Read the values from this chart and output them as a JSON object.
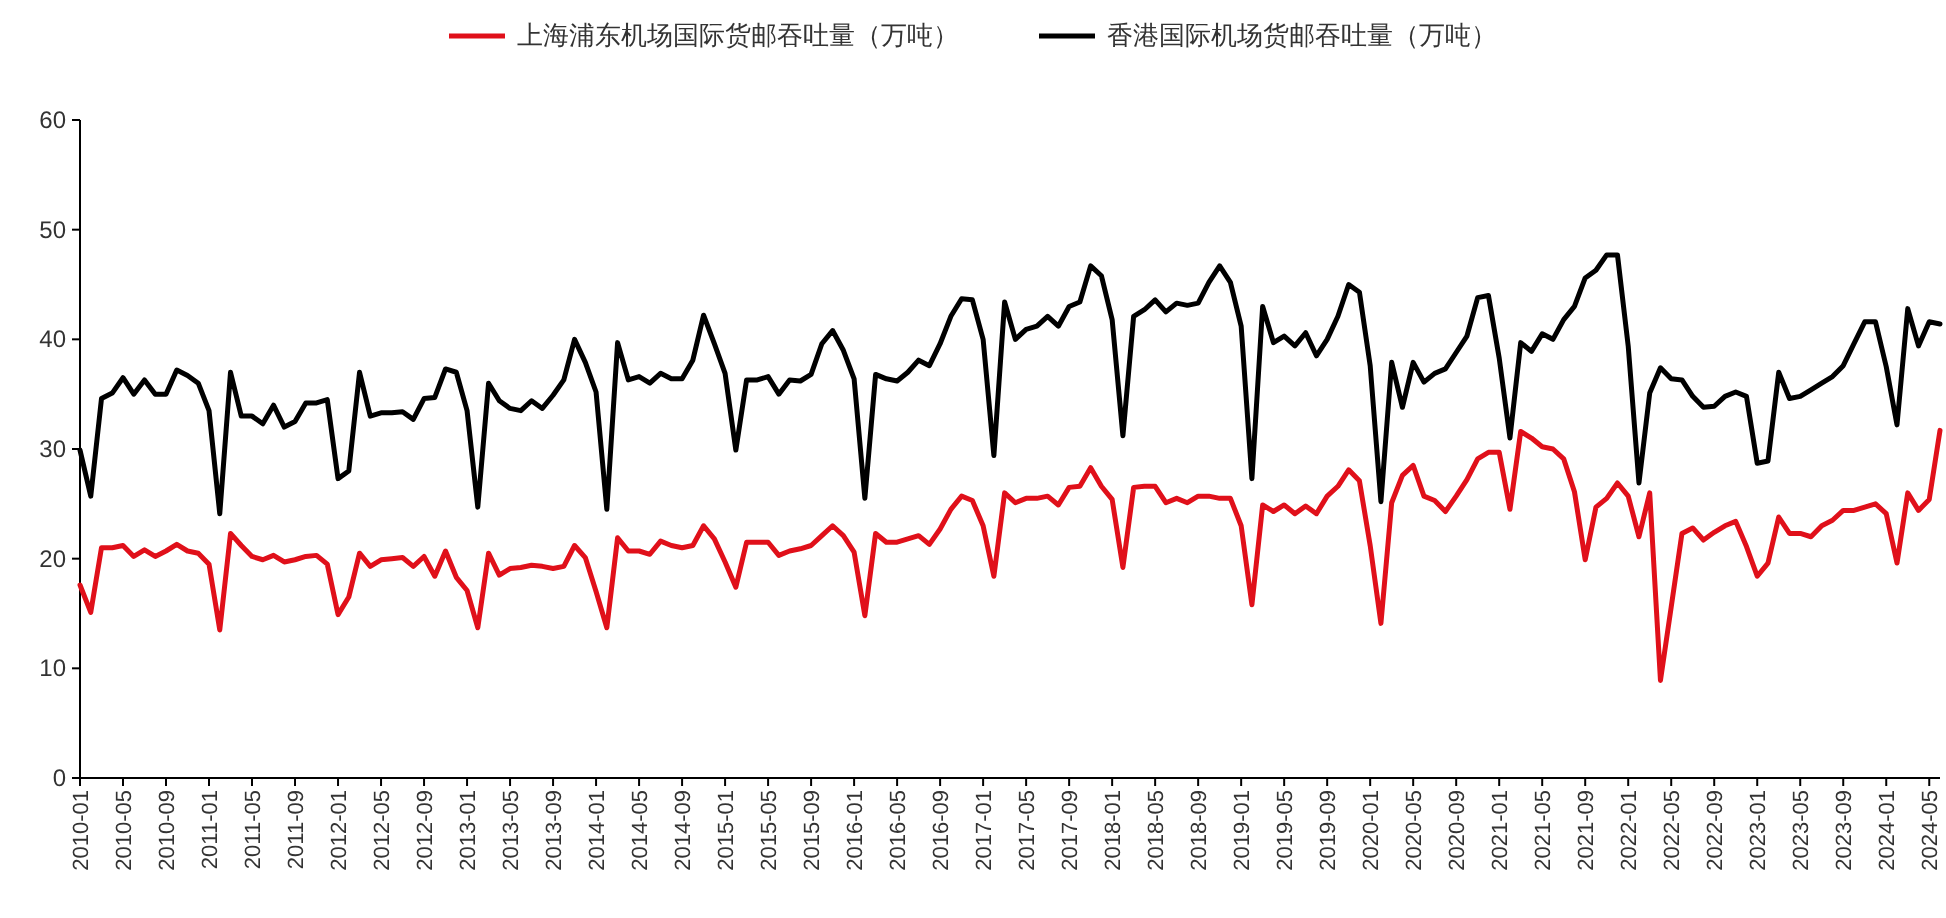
{
  "chart_data": {
    "type": "line",
    "legend": "top",
    "ylim": [
      0,
      60
    ],
    "yticks": [
      0,
      10,
      20,
      30,
      40,
      50,
      60
    ],
    "categories": [
      "2010-01",
      null,
      null,
      null,
      "2010-05",
      null,
      null,
      null,
      "2010-09",
      null,
      null,
      null,
      "2011-01",
      null,
      null,
      null,
      "2011-05",
      null,
      null,
      null,
      "2011-09",
      null,
      null,
      null,
      "2012-01",
      null,
      null,
      null,
      "2012-05",
      null,
      null,
      null,
      "2012-09",
      null,
      null,
      null,
      "2013-01",
      null,
      null,
      null,
      "2013-05",
      null,
      null,
      null,
      "2013-09",
      null,
      null,
      null,
      "2014-01",
      null,
      null,
      null,
      "2014-05",
      null,
      null,
      null,
      "2014-09",
      null,
      null,
      null,
      "2015-01",
      null,
      null,
      null,
      "2015-05",
      null,
      null,
      null,
      "2015-09",
      null,
      null,
      null,
      "2016-01",
      null,
      null,
      null,
      "2016-05",
      null,
      null,
      null,
      "2016-09",
      null,
      null,
      null,
      "2017-01",
      null,
      null,
      null,
      "2017-05",
      null,
      null,
      null,
      "2017-09",
      null,
      null,
      null,
      "2018-01",
      null,
      null,
      null,
      "2018-05",
      null,
      null,
      null,
      "2018-09",
      null,
      null,
      null,
      "2019-01",
      null,
      null,
      null,
      "2019-05",
      null,
      null,
      null,
      "2019-09",
      null,
      null,
      null,
      "2020-01",
      null,
      null,
      null,
      "2020-05",
      null,
      null,
      null,
      "2020-09",
      null,
      null,
      null,
      "2021-01",
      null,
      null,
      null,
      "2021-05",
      null,
      null,
      null,
      "2021-09",
      null,
      null,
      null,
      "2022-01",
      null,
      null,
      null,
      "2022-05",
      null,
      null,
      null,
      "2022-09",
      null,
      null,
      null,
      "2023-01",
      null,
      null,
      null,
      "2023-05",
      null,
      null,
      null,
      "2023-09",
      null,
      null,
      null,
      "2024-01",
      null,
      null,
      null,
      "2024-05",
      null
    ],
    "series": [
      {
        "name": "上海浦东机场国际货邮吞吐量（万吨）",
        "color": "#e0101a",
        "values": [
          17.6,
          15.1,
          21,
          21,
          21.2,
          20.2,
          20.8,
          20.2,
          20.7,
          21.3,
          20.7,
          20.5,
          19.5,
          13.5,
          22.3,
          21.2,
          20.2,
          19.9,
          20.3,
          19.7,
          19.9,
          20.2,
          20.3,
          19.5,
          14.9,
          16.5,
          20.5,
          19.3,
          19.9,
          20,
          20.1,
          19.3,
          20.2,
          18.4,
          20.7,
          18.3,
          17.1,
          13.7,
          20.5,
          18.5,
          19.1,
          19.2,
          19.4,
          19.3,
          19.1,
          19.3,
          21.2,
          20.1,
          17,
          13.7,
          21.9,
          20.7,
          20.7,
          20.4,
          21.6,
          21.2,
          21,
          21.2,
          23,
          21.8,
          19.7,
          17.4,
          21.5,
          21.5,
          21.5,
          20.3,
          20.7,
          20.9,
          21.2,
          22.1,
          23,
          22.1,
          20.6,
          14.8,
          22.3,
          21.5,
          21.5,
          21.8,
          22.1,
          21.3,
          22.7,
          24.5,
          25.7,
          25.3,
          23,
          18.4,
          26,
          25.1,
          25.5,
          25.5,
          25.7,
          24.9,
          26.5,
          26.6,
          28.3,
          26.6,
          25.4,
          19.2,
          26.5,
          26.6,
          26.6,
          25.1,
          25.5,
          25.1,
          25.7,
          25.7,
          25.5,
          25.5,
          23,
          15.8,
          24.9,
          24.3,
          24.9,
          24.1,
          24.8,
          24.1,
          25.7,
          26.6,
          28.1,
          27.1,
          21.2,
          14.1,
          25.1,
          27.6,
          28.5,
          25.7,
          25.3,
          24.3,
          25.7,
          27.2,
          29.1,
          29.7,
          29.7,
          24.5,
          31.6,
          31,
          30.2,
          30,
          29.1,
          26.1,
          19.9,
          24.7,
          25.5,
          26.9,
          25.7,
          22,
          26,
          8.9,
          15.6,
          22.3,
          22.8,
          21.7,
          22.4,
          23,
          23.4,
          21.1,
          18.4,
          19.6,
          23.8,
          22.3,
          22.3,
          22,
          23,
          23.5,
          24.4,
          24.4,
          24.7,
          25,
          24.1,
          19.6,
          26,
          24.4,
          25.4,
          31.7
        ]
      },
      {
        "name": "香港国际机场货邮吞吐量（万吨）",
        "color": "#000000",
        "values": [
          29.9,
          25.7,
          34.6,
          35.1,
          36.5,
          35,
          36.3,
          35,
          35,
          37.2,
          36.7,
          36,
          33.5,
          24.1,
          37,
          33,
          33,
          32.3,
          34,
          32,
          32.5,
          34.2,
          34.2,
          34.5,
          27.3,
          28,
          37,
          33,
          33.3,
          33.3,
          33.4,
          32.7,
          34.6,
          34.7,
          37.3,
          37,
          33.5,
          24.7,
          36,
          34.4,
          33.7,
          33.5,
          34.4,
          33.7,
          34.9,
          36.3,
          40,
          37.9,
          35.2,
          24.5,
          39.7,
          36.3,
          36.6,
          36,
          36.9,
          36.4,
          36.4,
          38.1,
          42.2,
          39.6,
          36.9,
          29.9,
          36.3,
          36.3,
          36.6,
          35,
          36.3,
          36.2,
          36.8,
          39.6,
          40.8,
          39,
          36.4,
          25.5,
          36.8,
          36.4,
          36.2,
          37,
          38.1,
          37.6,
          39.6,
          42.1,
          43.7,
          43.6,
          40,
          29.4,
          43.4,
          40,
          40.9,
          41.2,
          42.1,
          41.2,
          43,
          43.4,
          46.7,
          45.8,
          41.8,
          31.2,
          42.1,
          42.7,
          43.6,
          42.5,
          43.3,
          43.1,
          43.3,
          45.2,
          46.7,
          45.2,
          41.2,
          27.3,
          43,
          39.7,
          40.3,
          39.4,
          40.6,
          38.5,
          40,
          42.1,
          45,
          44.3,
          37.6,
          25.2,
          37.9,
          33.8,
          37.9,
          36.1,
          36.9,
          37.3,
          38.8,
          40.3,
          43.8,
          44,
          38.3,
          31,
          39.7,
          38.9,
          40.5,
          40,
          41.8,
          43,
          45.6,
          46.3,
          47.7,
          47.7,
          39.4,
          26.9,
          35.1,
          37.4,
          36.4,
          36.3,
          34.8,
          33.8,
          33.9,
          34.8,
          35.2,
          34.8,
          28.7,
          28.9,
          37,
          34.6,
          34.8,
          35.4,
          36,
          36.6,
          37.6,
          39.6,
          41.6,
          41.6,
          37.5,
          32.2,
          42.8,
          39.4,
          41.6,
          41.4
        ]
      }
    ]
  }
}
